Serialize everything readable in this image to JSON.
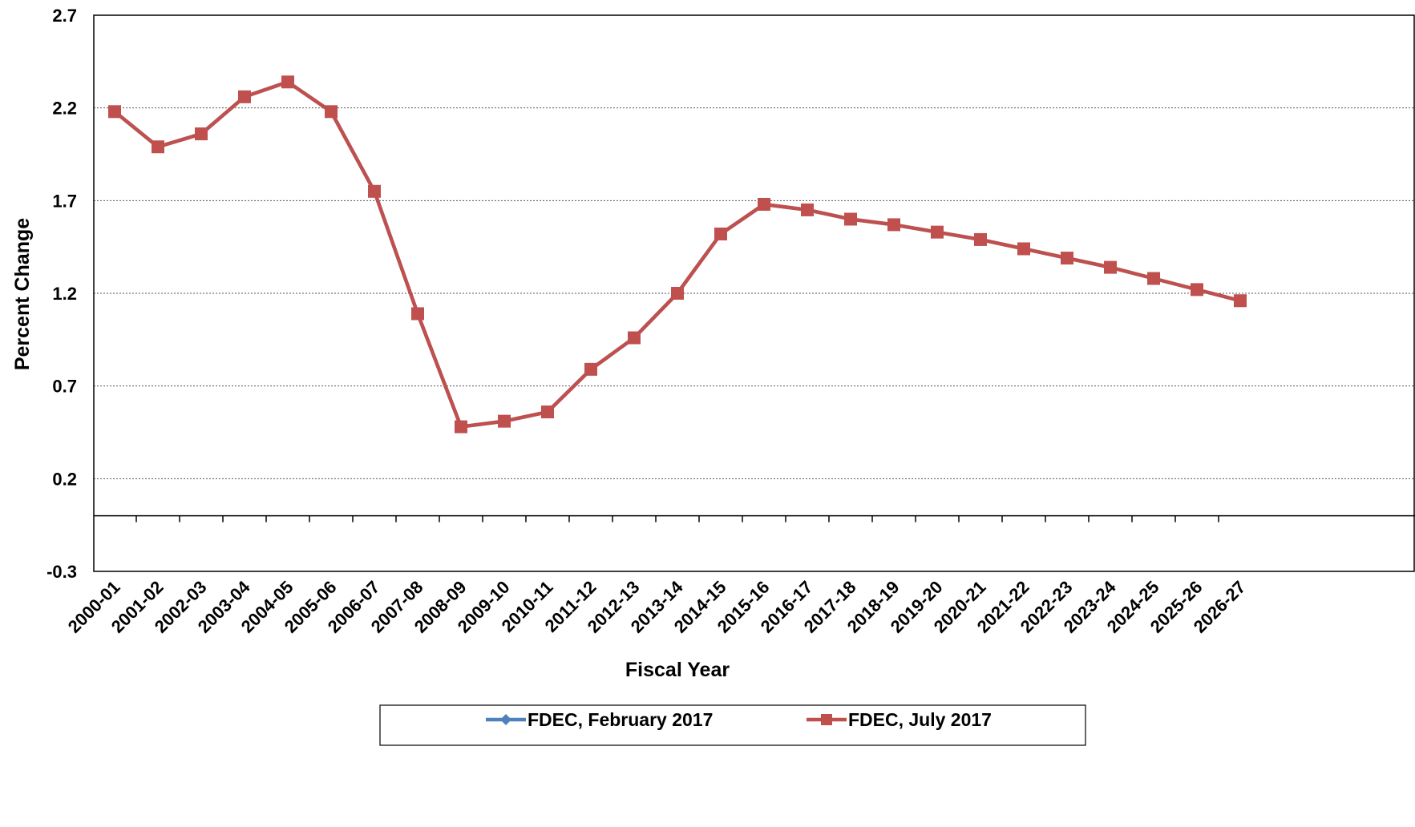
{
  "chart_data": {
    "type": "line",
    "title": "",
    "xlabel": "Fiscal Year",
    "ylabel": "Percent Change",
    "ylim": [
      -0.3,
      2.7
    ],
    "yticks": [
      -0.3,
      0.2,
      0.7,
      1.2,
      1.7,
      2.2,
      2.7
    ],
    "grid": true,
    "legend_position": "bottom",
    "categories": [
      "2000-01",
      "2001-02",
      "2002-03",
      "2003-04",
      "2004-05",
      "2005-06",
      "2006-07",
      "2007-08",
      "2008-09",
      "2009-10",
      "2010-11",
      "2011-12",
      "2012-13",
      "2013-14",
      "2014-15",
      "2015-16",
      "2016-17",
      "2017-18",
      "2018-19",
      "2019-20",
      "2020-21",
      "2021-22",
      "2022-23",
      "2023-24",
      "2024-25",
      "2025-26",
      "2026-27"
    ],
    "series": [
      {
        "name": "FDEC, February 2017",
        "color": "#4f81bd",
        "marker": "diamond",
        "values": [
          2.18,
          1.99,
          2.06,
          2.26,
          2.34,
          2.18,
          1.75,
          1.09,
          0.48,
          0.51,
          0.56,
          0.79,
          0.96,
          1.2,
          1.52,
          1.68,
          1.65,
          1.6,
          1.57,
          1.53,
          1.49,
          1.44,
          1.39,
          1.34,
          1.28,
          1.22,
          1.16
        ]
      },
      {
        "name": "FDEC, July 2017",
        "color": "#c0504d",
        "marker": "square",
        "values": [
          2.18,
          1.99,
          2.06,
          2.26,
          2.34,
          2.18,
          1.75,
          1.09,
          0.48,
          0.51,
          0.56,
          0.79,
          0.96,
          1.2,
          1.52,
          1.68,
          1.65,
          1.6,
          1.57,
          1.53,
          1.49,
          1.44,
          1.39,
          1.34,
          1.28,
          1.22,
          1.16
        ]
      }
    ]
  }
}
